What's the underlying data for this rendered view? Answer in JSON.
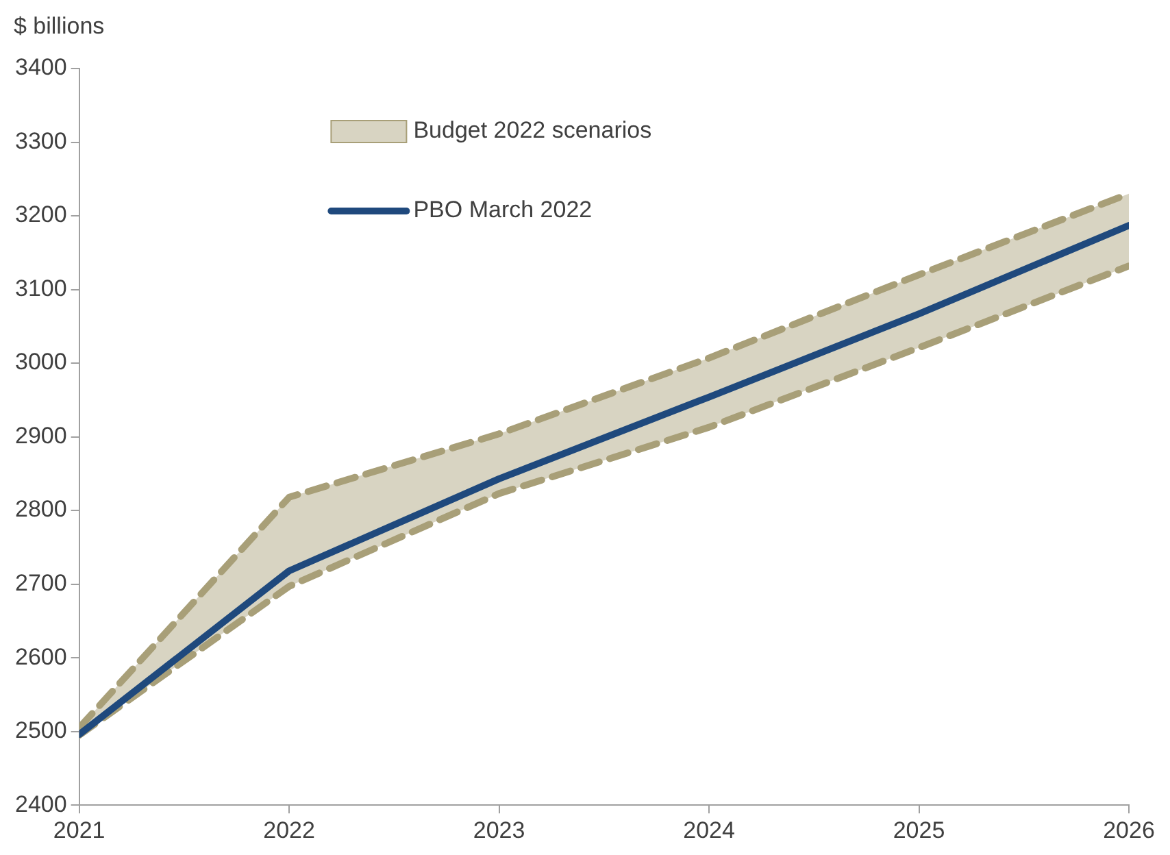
{
  "chart_data": {
    "type": "line",
    "ylabel": "$ billions",
    "x": [
      2021,
      2022,
      2023,
      2024,
      2025,
      2026
    ],
    "series": [
      {
        "name": "Budget 2022 scenarios",
        "type": "area",
        "color": "#a89f78",
        "values": [
          null,
          null,
          null,
          null,
          null,
          null
        ],
        "upper": [
          2505,
          2818,
          2904,
          3007,
          3120,
          3230
        ],
        "lower": [
          2495,
          2697,
          2823,
          2913,
          3021,
          3132
        ]
      },
      {
        "type": "line",
        "color": "#a89f78",
        "line_style": "dashed",
        "values": [
          2505,
          2818,
          2904,
          3007,
          3120,
          3230
        ]
      },
      {
        "type": "line",
        "color": "#a89f78",
        "line_style": "dashed",
        "values": [
          2495,
          2697,
          2823,
          2913,
          3021,
          3132
        ]
      },
      {
        "name": "PBO March 2022",
        "type": "line",
        "color": "#1f497d",
        "line_style": "solid",
        "values": [
          2496,
          2718,
          2843,
          2954,
          3067,
          3187
        ]
      }
    ],
    "xlim": [
      2021,
      2026
    ],
    "xticks": [
      2021,
      2022,
      2023,
      2024,
      2025,
      2026
    ],
    "ylim": [
      2400,
      3400
    ],
    "yticks": [
      2400,
      2500,
      2600,
      2700,
      2800,
      2900,
      3000,
      3100,
      3200,
      3300,
      3400
    ],
    "grid": false,
    "legend": "top",
    "marker": "none"
  }
}
